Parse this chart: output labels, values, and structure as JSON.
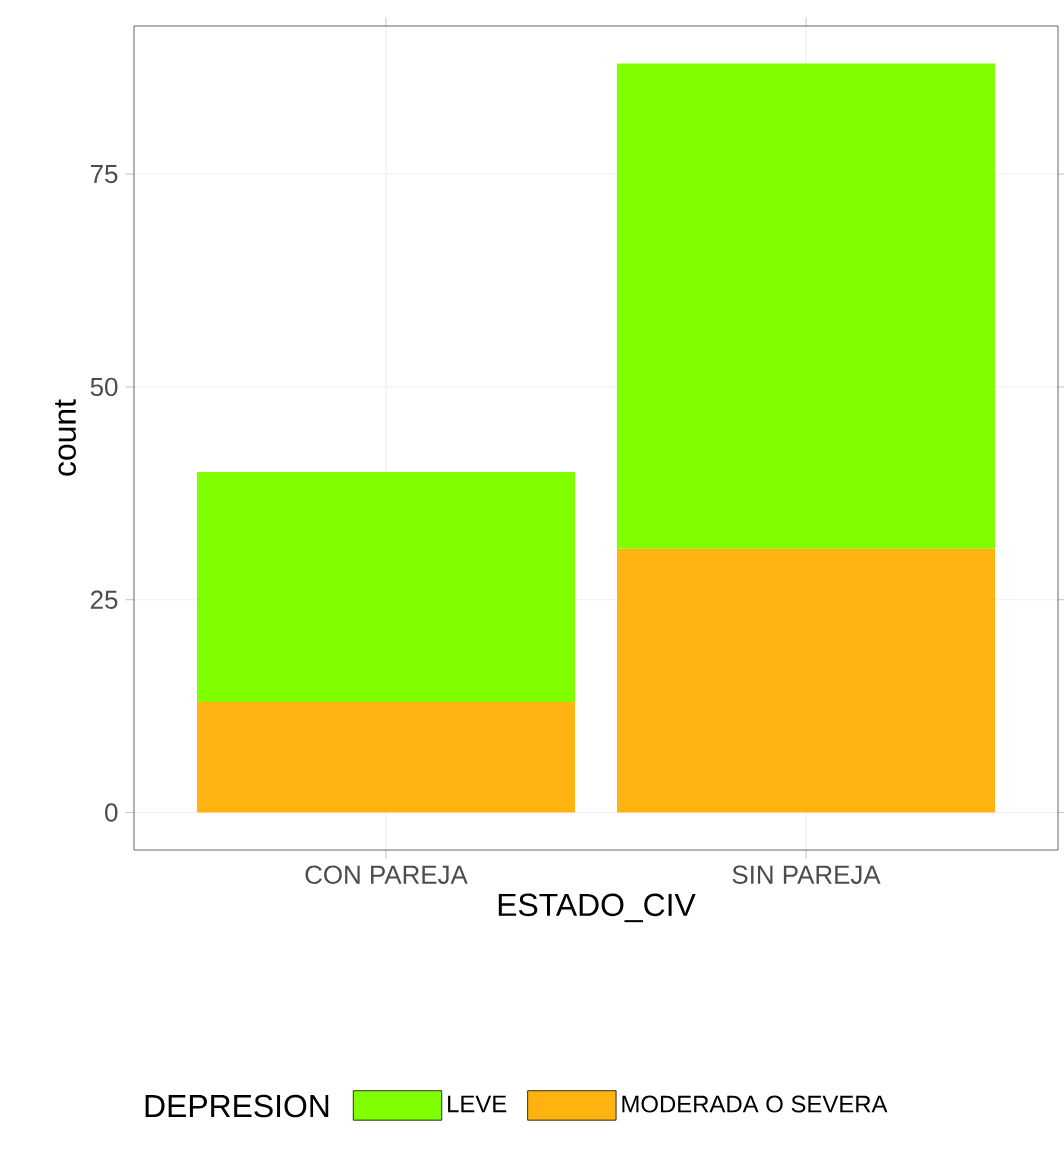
{
  "chart_data": {
    "type": "bar",
    "stacked": true,
    "xlabel": "ESTADO_CIV",
    "ylabel": "count",
    "legend_title": "DEPRESION",
    "categories": [
      "CON PAREJA",
      "SIN PAREJA"
    ],
    "series": [
      {
        "name": "MODERADA O SEVERA",
        "color": "#ffb310",
        "values": [
          13,
          31
        ]
      },
      {
        "name": "LEVE",
        "color": "#80ff00",
        "values": [
          27,
          57
        ]
      }
    ],
    "ylim": [
      -4.4,
      92.4
    ],
    "yticks": [
      0,
      25,
      50,
      75
    ],
    "grid": true,
    "legend": "bottom"
  }
}
